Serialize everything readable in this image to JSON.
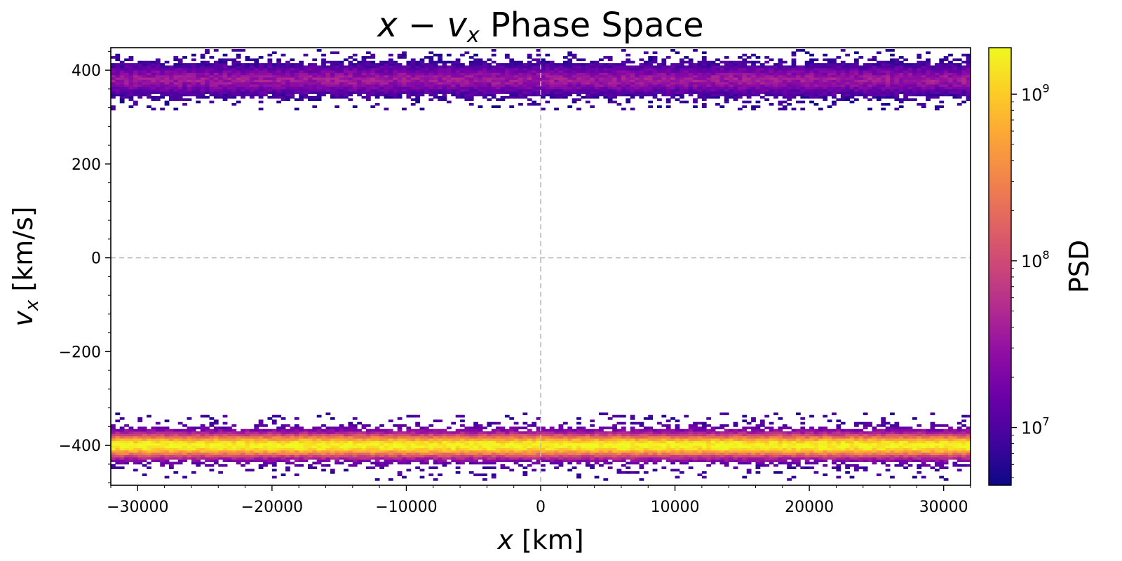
{
  "chart_data": {
    "type": "heatmap",
    "title": "x − vx Phase Space",
    "title_parts": {
      "var1": "x",
      "op": " − ",
      "var2": "v",
      "sub": "x",
      "rest": " Phase Space"
    },
    "xlabel": "x [km]",
    "xlabel_parts": {
      "var": "x",
      "unit": " [km]"
    },
    "ylabel": "vx [km/s]",
    "ylabel_parts": {
      "var": "v",
      "sub": "x",
      "unit": " [km/s]"
    },
    "xlim": [
      -32000,
      32000
    ],
    "ylim": [
      -485,
      448
    ],
    "xticks": [
      -30000,
      -20000,
      -10000,
      0,
      10000,
      20000,
      30000
    ],
    "xtick_labels": [
      "−30000",
      "−20000",
      "−10000",
      "0",
      "10000",
      "20000",
      "30000"
    ],
    "yticks": [
      -400,
      -200,
      0,
      200,
      400
    ],
    "ytick_labels": [
      "−400",
      "−200",
      "0",
      "200",
      "400"
    ],
    "grid": "dashed lines at x=0 and vx=0",
    "colormap": "plasma",
    "colorbar": {
      "label": "PSD",
      "scale": "log",
      "range": [
        4500000.0,
        1900000000.0
      ],
      "ticks": [
        {
          "value": 10000000.0,
          "base": "10",
          "exp": "7"
        },
        {
          "value": 100000000.0,
          "base": "10",
          "exp": "8"
        },
        {
          "value": 1000000000.0,
          "base": "10",
          "exp": "9"
        }
      ]
    },
    "bins": {
      "x": 192,
      "vx_width": 5
    },
    "beams": [
      {
        "name": "",
        "vx_center": -400,
        "vx_core_sigma": 18,
        "vx_extent": [
          -475,
          -330
        ],
        "peak_psd": 1900000000.0,
        "edge_psd": 8000000.0
      },
      {
        "name": "",
        "vx_center": 380,
        "vx_core_sigma": 18,
        "vx_extent": [
          315,
          445
        ],
        "peak_psd": 35000000.0,
        "edge_psd": 7000000.0
      }
    ]
  },
  "colors": {
    "grid": "#bbbbbb",
    "axes": "#000000",
    "background": "#ffffff"
  }
}
